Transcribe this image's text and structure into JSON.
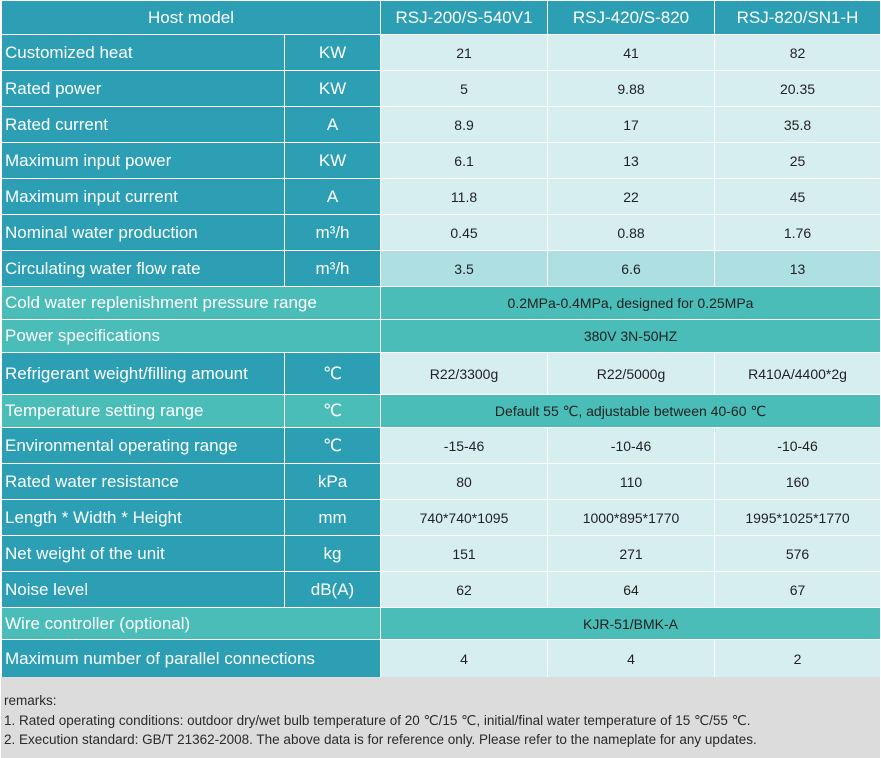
{
  "header": {
    "title": "Host model",
    "models": [
      "RSJ-200/S-540V1",
      "RSJ-420/S-820",
      "RSJ-820/SN1-H"
    ]
  },
  "rows": [
    {
      "label": "Customized heat",
      "unit": "KW",
      "values": [
        "21",
        "41",
        "82"
      ]
    },
    {
      "label": "Rated power",
      "unit": "KW",
      "values": [
        "5",
        "9.88",
        "20.35"
      ]
    },
    {
      "label": "Rated current",
      "unit": "A",
      "values": [
        "8.9",
        "17",
        "35.8"
      ]
    },
    {
      "label": "Maximum input power",
      "unit": "KW",
      "values": [
        "6.1",
        "13",
        "25"
      ]
    },
    {
      "label": "Maximum input current",
      "unit": "A",
      "values": [
        "11.8",
        "22",
        "45"
      ]
    },
    {
      "label": "Nominal water production",
      "unit": "m³/h",
      "values": [
        "0.45",
        "0.88",
        "1.76"
      ]
    },
    {
      "label": "Circulating water flow rate",
      "unit": "m³/h",
      "values": [
        "3.5",
        "6.6",
        "13"
      ]
    },
    {
      "label": "Cold water replenishment pressure range",
      "merged": "0.2MPa-0.4MPa, designed for 0.25MPa"
    },
    {
      "label": "Power specifications",
      "merged": "380V 3N-50HZ"
    },
    {
      "label": "Refrigerant weight/filling amount",
      "unit": "℃",
      "values": [
        "R22/3300g",
        "R22/5000g",
        "R410A/4400*2g"
      ]
    },
    {
      "label": "Temperature setting range",
      "unit": "℃",
      "merged": "Default 55 ℃, adjustable between 40-60 ℃"
    },
    {
      "label": "Environmental operating range",
      "unit": "℃",
      "values": [
        "-15-46",
        "-10-46",
        "-10-46"
      ]
    },
    {
      "label": "Rated water resistance",
      "unit": "kPa",
      "values": [
        "80",
        "110",
        "160"
      ]
    },
    {
      "label": "Length * Width * Height",
      "unit": "mm",
      "values": [
        "740*740*1095",
        "1000*895*1770",
        "1995*1025*1770"
      ]
    },
    {
      "label": "Net weight of the unit",
      "unit": "kg",
      "values": [
        "151",
        "271",
        "576"
      ]
    },
    {
      "label": "Noise level",
      "unit": "dB(A)",
      "values": [
        "62",
        "64",
        "67"
      ]
    },
    {
      "label": "Wire controller (optional)",
      "merged": "KJR-51/BMK-A"
    },
    {
      "label": "Maximum number of parallel connections",
      "values": [
        "4",
        "4",
        "2"
      ]
    }
  ],
  "remarks": {
    "title": "remarks:",
    "lines": [
      "1. Rated operating conditions: outdoor dry/wet bulb temperature of 20 ℃/15 ℃, initial/final water temperature of 15 ℃/55 ℃.",
      "2. Execution standard: GB/T 21362-2008. The above data is for reference only. Please refer to the nameplate for any updates."
    ]
  }
}
